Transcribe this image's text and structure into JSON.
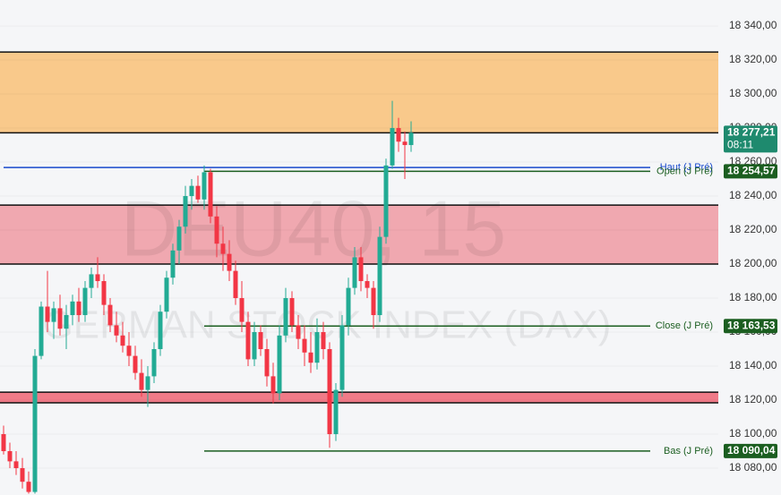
{
  "chart_data": {
    "type": "candlestick",
    "watermark": "DEU40, 15",
    "watermark_subtitle": "GERMAN STOCK INDEX (DAX)",
    "ylim": [
      18064.2,
      18355.3
    ],
    "yticks": [
      {
        "value": 18080,
        "label": "18 080,00"
      },
      {
        "value": 18100,
        "label": "18 100,00"
      },
      {
        "value": 18120,
        "label": "18 120,00"
      },
      {
        "value": 18140,
        "label": "18 140,00"
      },
      {
        "value": 18160,
        "label": "18 160,00"
      },
      {
        "value": 18180,
        "label": "18 180,00"
      },
      {
        "value": 18200,
        "label": "18 200,00"
      },
      {
        "value": 18220,
        "label": "18 220,00"
      },
      {
        "value": 18240,
        "label": "18 240,00"
      },
      {
        "value": 18260,
        "label": "18 260,00"
      },
      {
        "value": 18280,
        "label": "18 280,00"
      },
      {
        "value": 18300,
        "label": "18 300,00"
      },
      {
        "value": 18320,
        "label": "18 320,00"
      },
      {
        "value": 18340,
        "label": "18 340,00"
      }
    ],
    "up_color": "#22ab94",
    "down_color": "#f23645",
    "open": [
      18100,
      18090,
      18084,
      18080,
      18072,
      18066,
      18146,
      18175,
      18166,
      18174,
      18162,
      18170,
      18178,
      18170,
      18186,
      18194,
      18190,
      18176,
      18164,
      18158,
      18152,
      18146,
      18136,
      18126,
      18134,
      18150,
      18172,
      18192,
      18208,
      18222,
      18240,
      18246,
      18238,
      18254,
      18228,
      18212,
      18206,
      18196,
      18180,
      18166,
      18144,
      18160,
      18150,
      18134,
      18124,
      18158,
      18180,
      18164,
      18156,
      18148,
      18142,
      18160,
      18150,
      18100,
      18126,
      18164,
      18186,
      18204,
      18190,
      18186,
      18170,
      18216,
      18258,
      18280,
      18272,
      18270
    ],
    "high": [
      18105,
      18095,
      18090,
      18086,
      18078,
      18150,
      18178,
      18196,
      18178,
      18182,
      18176,
      18182,
      18186,
      18190,
      18198,
      18204,
      18194,
      18180,
      18172,
      18166,
      18160,
      18152,
      18144,
      18140,
      18154,
      18176,
      18196,
      18212,
      18226,
      18246,
      18250,
      18252,
      18258,
      18256,
      18234,
      18222,
      18214,
      18202,
      18190,
      18172,
      18166,
      18164,
      18156,
      18142,
      18164,
      18186,
      18184,
      18170,
      18164,
      18160,
      18168,
      18166,
      18154,
      18130,
      18170,
      18192,
      18210,
      18210,
      18194,
      18190,
      18222,
      18262,
      18296,
      18286,
      18278,
      18284
    ],
    "low": [
      18088,
      18080,
      18076,
      18068,
      18065,
      18065,
      18144,
      18160,
      18156,
      18158,
      18150,
      18164,
      18166,
      18166,
      18180,
      18186,
      18170,
      18160,
      18154,
      18148,
      18140,
      18132,
      18122,
      18116,
      18130,
      18146,
      18168,
      18188,
      18200,
      18218,
      18232,
      18236,
      18232,
      18224,
      18204,
      18196,
      18190,
      18176,
      18160,
      18140,
      18140,
      18146,
      18128,
      18118,
      18120,
      18154,
      18160,
      18150,
      18140,
      18136,
      18138,
      18144,
      18092,
      18096,
      18122,
      18158,
      18182,
      18184,
      18180,
      18162,
      18166,
      18212,
      18256,
      18266,
      18250,
      18266
    ],
    "close": [
      18090,
      18084,
      18080,
      18072,
      18066,
      18146,
      18175,
      18166,
      18174,
      18162,
      18170,
      18178,
      18170,
      18186,
      18194,
      18190,
      18176,
      18164,
      18158,
      18152,
      18146,
      18136,
      18126,
      18134,
      18150,
      18172,
      18192,
      18208,
      18222,
      18240,
      18246,
      18238,
      18254,
      18228,
      18212,
      18206,
      18196,
      18180,
      18166,
      18144,
      18160,
      18150,
      18134,
      18124,
      18158,
      18180,
      18164,
      18156,
      18148,
      18142,
      18160,
      18150,
      18100,
      18126,
      18164,
      18186,
      18204,
      18190,
      18186,
      18170,
      18216,
      18258,
      18280,
      18272,
      18270,
      18277.21
    ],
    "zones": [
      {
        "top": 18324.7,
        "bottom": 18277.21,
        "color": "#f9c98b"
      },
      {
        "top": 18234.7,
        "bottom": 18200,
        "color": "#f0a8b0"
      },
      {
        "top": 18124.7,
        "bottom": 18118.4,
        "color": "#f07b88"
      }
    ],
    "levels": [
      {
        "label": "Haut (J Pré)",
        "value": 18256.8,
        "color": "#1848cc",
        "start": 0
      },
      {
        "label": "Open (J Pré)",
        "value": 18254.57,
        "color": "#1b5e20",
        "start": 32
      },
      {
        "label": "Close (J Pré)",
        "value": 18163.53,
        "color": "#1b5e20",
        "start": 32
      },
      {
        "label": "Bas (J Pré)",
        "value": 18090.04,
        "color": "#1b5e20",
        "start": 32
      }
    ],
    "price_tags": [
      {
        "value": 18277.21,
        "label": "18 277,21",
        "sub": "08:11",
        "color": "#1e8a6e"
      },
      {
        "value": 18254.57,
        "label": "18 254,57",
        "color": "#1b5e20"
      },
      {
        "value": 18163.53,
        "label": "18 163,53",
        "color": "#1b5e20"
      },
      {
        "value": 18090.04,
        "label": "18 090,04",
        "color": "#1b5e20"
      }
    ]
  }
}
